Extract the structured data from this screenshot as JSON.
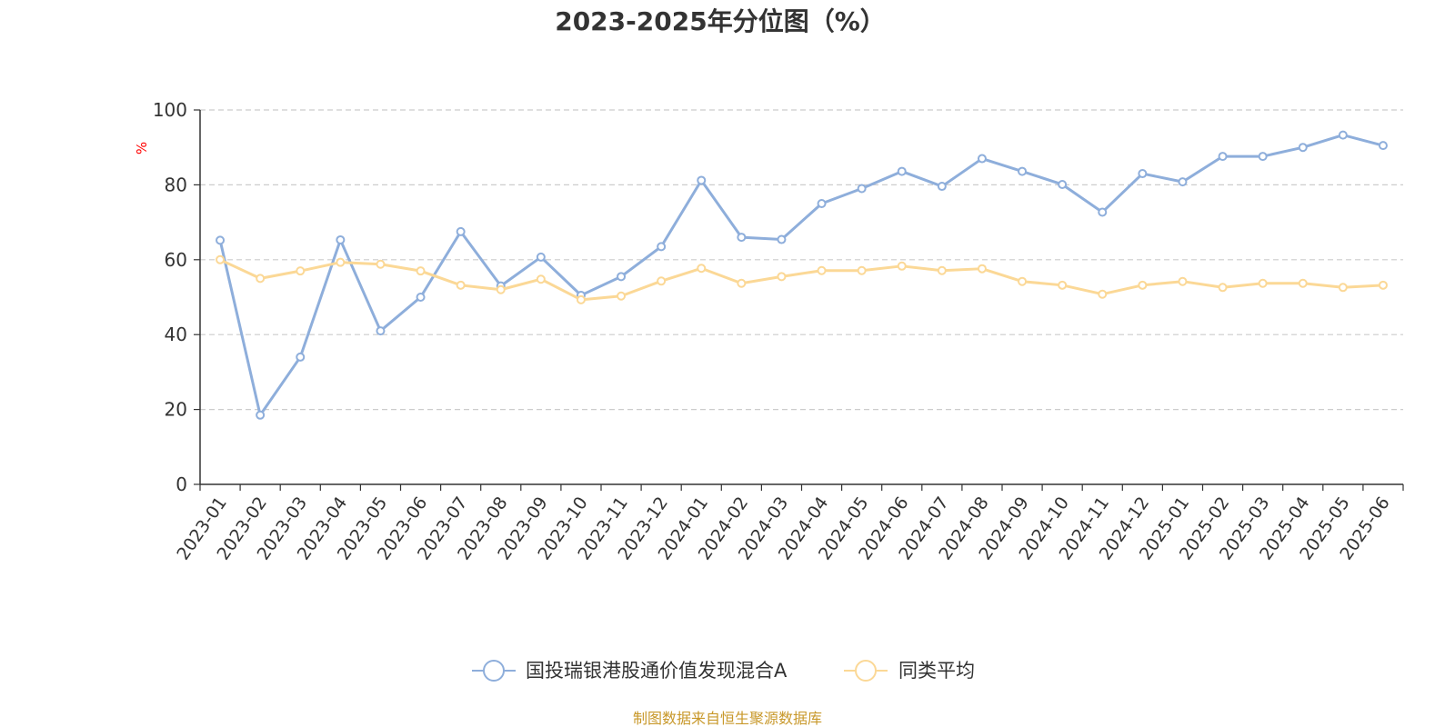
{
  "chart_data": {
    "type": "line",
    "title": "2023-2025年分位图（%）",
    "ylabel": "%",
    "ylim": [
      0,
      100
    ],
    "yticks": [
      0,
      20,
      40,
      60,
      80,
      100
    ],
    "grid": true,
    "legend_position": "bottom",
    "categories": [
      "2023-01",
      "2023-02",
      "2023-03",
      "2023-04",
      "2023-05",
      "2023-06",
      "2023-07",
      "2023-08",
      "2023-09",
      "2023-10",
      "2023-11",
      "2023-12",
      "2024-01",
      "2024-02",
      "2024-03",
      "2024-04",
      "2024-05",
      "2024-06",
      "2024-07",
      "2024-08",
      "2024-09",
      "2024-10",
      "2024-11",
      "2024-12",
      "2025-01",
      "2025-02",
      "2025-03",
      "2025-04",
      "2025-05",
      "2025-06"
    ],
    "series": [
      {
        "name": "国投瑞银港股通价值发现混合A",
        "color": "#8eaedb",
        "values": [
          65.2,
          18.5,
          34,
          65.3,
          41,
          50,
          67.5,
          53,
          60.7,
          50.5,
          55.5,
          63.5,
          81.2,
          66,
          65.4,
          75,
          79,
          83.6,
          79.6,
          87,
          83.6,
          80.1,
          72.7,
          83,
          80.8,
          87.6,
          87.6,
          90,
          93.3,
          90.5
        ]
      },
      {
        "name": "同类平均",
        "color": "#fbd896",
        "values": [
          60,
          55,
          57,
          59.3,
          58.8,
          57,
          53.2,
          52,
          54.8,
          49.3,
          50.3,
          54.3,
          57.7,
          53.7,
          55.5,
          57.1,
          57.1,
          58.3,
          57.1,
          57.6,
          54.2,
          53.2,
          50.8,
          53.2,
          54.2,
          52.6,
          53.7,
          53.7,
          52.6,
          53.2
        ]
      }
    ],
    "source": "制图数据来自恒生聚源数据库"
  },
  "colors": {
    "axis": "#333333",
    "grid": "#cccccc",
    "unit_label": "#ff0000",
    "source_text": "#c8982a"
  }
}
